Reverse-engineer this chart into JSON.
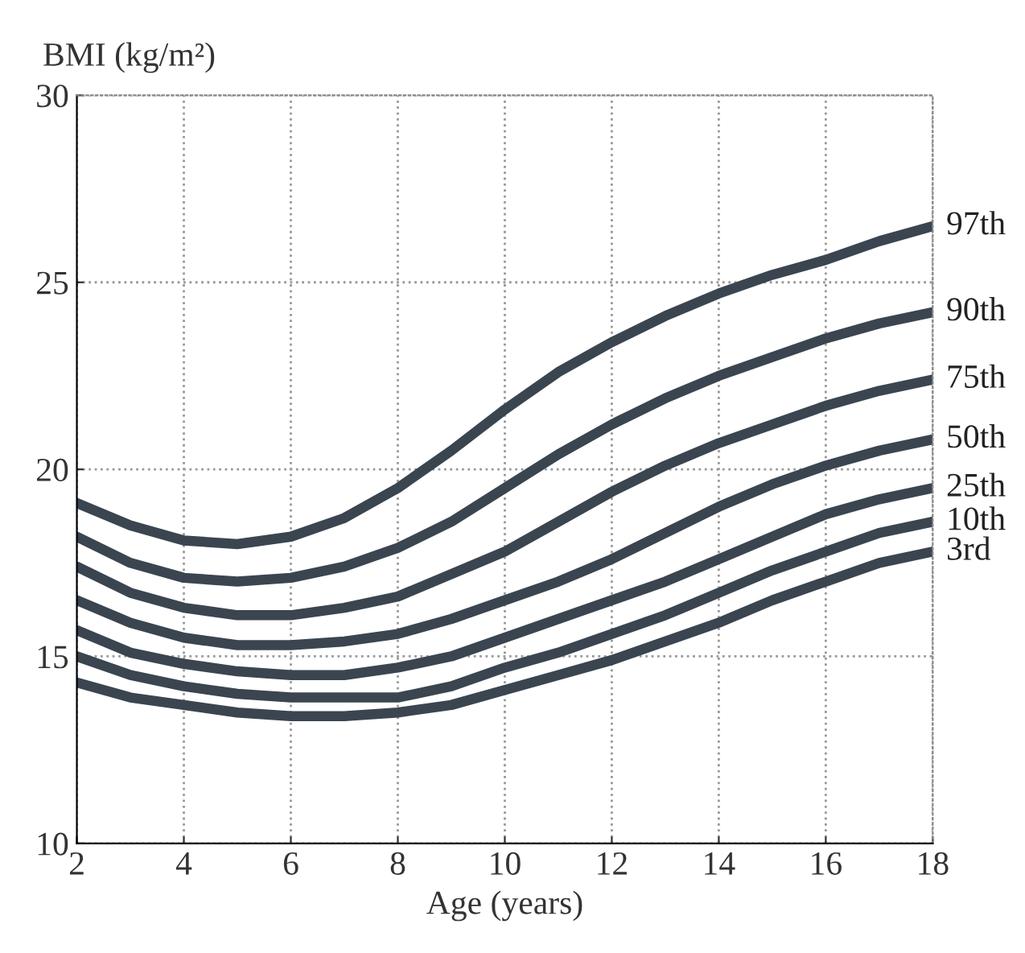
{
  "chart_data": {
    "type": "line",
    "xlabel": "Age (years)",
    "ylabel": "BMI (kg/m²)",
    "x": [
      2,
      3,
      4,
      5,
      6,
      7,
      8,
      9,
      10,
      11,
      12,
      13,
      14,
      15,
      16,
      17,
      18
    ],
    "series": [
      {
        "name": "97th",
        "color": "#3a4550",
        "values": [
          19.1,
          18.5,
          18.1,
          18.0,
          18.2,
          18.7,
          19.5,
          20.5,
          21.6,
          22.6,
          23.4,
          24.1,
          24.7,
          25.2,
          25.6,
          26.1,
          26.5
        ]
      },
      {
        "name": "90th",
        "color": "#3a4550",
        "values": [
          18.2,
          17.5,
          17.1,
          17.0,
          17.1,
          17.4,
          17.9,
          18.6,
          19.5,
          20.4,
          21.2,
          21.9,
          22.5,
          23.0,
          23.5,
          23.9,
          24.2
        ]
      },
      {
        "name": "75th",
        "color": "#3a4550",
        "values": [
          17.4,
          16.7,
          16.3,
          16.1,
          16.1,
          16.3,
          16.6,
          17.2,
          17.8,
          18.6,
          19.4,
          20.1,
          20.7,
          21.2,
          21.7,
          22.1,
          22.4
        ]
      },
      {
        "name": "50th",
        "color": "#3a4550",
        "values": [
          16.5,
          15.9,
          15.5,
          15.3,
          15.3,
          15.4,
          15.6,
          16.0,
          16.5,
          17.0,
          17.6,
          18.3,
          19.0,
          19.6,
          20.1,
          20.5,
          20.8
        ]
      },
      {
        "name": "25th",
        "color": "#3a4550",
        "values": [
          15.7,
          15.1,
          14.8,
          14.6,
          14.5,
          14.5,
          14.7,
          15.0,
          15.5,
          16.0,
          16.5,
          17.0,
          17.6,
          18.2,
          18.8,
          19.2,
          19.5
        ]
      },
      {
        "name": "10th",
        "color": "#3a4550",
        "values": [
          15.0,
          14.5,
          14.2,
          14.0,
          13.9,
          13.9,
          13.9,
          14.2,
          14.7,
          15.1,
          15.6,
          16.1,
          16.7,
          17.3,
          17.8,
          18.3,
          18.6
        ]
      },
      {
        "name": "3rd",
        "color": "#3a4550",
        "values": [
          14.3,
          13.9,
          13.7,
          13.5,
          13.4,
          13.4,
          13.5,
          13.7,
          14.1,
          14.5,
          14.9,
          15.4,
          15.9,
          16.5,
          17.0,
          17.5,
          17.8
        ]
      }
    ],
    "xlim": [
      2,
      18
    ],
    "xticks": [
      2,
      4,
      6,
      8,
      10,
      12,
      14,
      16,
      18
    ],
    "ylim": [
      10,
      30
    ],
    "yticks": [
      10,
      15,
      20,
      25,
      30
    ],
    "grid": true,
    "marker": "none",
    "line_style": "solid",
    "legend": false
  }
}
